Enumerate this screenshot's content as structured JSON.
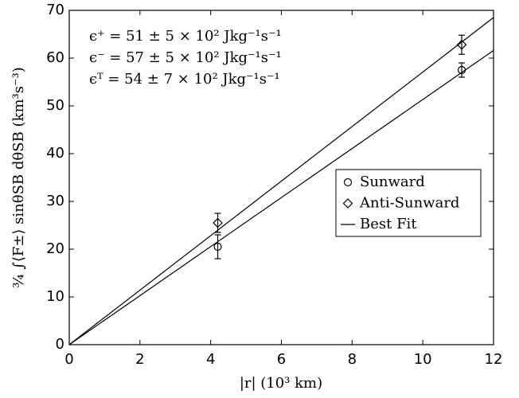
{
  "chart_data": {
    "type": "scatter",
    "xlabel": "|r| (10³ km)",
    "ylabel": "¾ ∫⟨F±⟩ sinθSB dθSB (km³s⁻³)",
    "annotations": [
      "ϵ⁺ = 51 ± 5 × 10² Jkg⁻¹s⁻¹",
      "ϵ⁻ = 57 ± 5 × 10² Jkg⁻¹s⁻¹",
      "ϵᵀ = 54 ± 7 × 10² Jkg⁻¹s⁻¹"
    ],
    "xlim": [
      0,
      12
    ],
    "xticks": [
      0,
      2,
      4,
      6,
      8,
      10,
      12
    ],
    "ylim": [
      0,
      70
    ],
    "yticks": [
      0,
      10,
      20,
      30,
      40,
      50,
      60,
      70
    ],
    "legend": "right",
    "series": [
      {
        "name": "Sunward",
        "marker": "circle",
        "color": "#000000",
        "x": [
          4.2,
          11.1
        ],
        "values": [
          20.5,
          57.5
        ],
        "errors": [
          2.5,
          1.5
        ]
      },
      {
        "name": "Anti-Sunward",
        "marker": "diamond",
        "color": "#000000",
        "x": [
          4.2,
          11.1
        ],
        "values": [
          25.5,
          62.8
        ],
        "errors": [
          2,
          2
        ]
      },
      {
        "name": "Best Fit",
        "marker": "line",
        "color": "#000000",
        "lines": [
          {
            "x": [
              0,
              12
            ],
            "values": [
              0,
              68.5
            ]
          },
          {
            "x": [
              0,
              12
            ],
            "values": [
              0,
              61.6
            ]
          }
        ]
      }
    ]
  }
}
